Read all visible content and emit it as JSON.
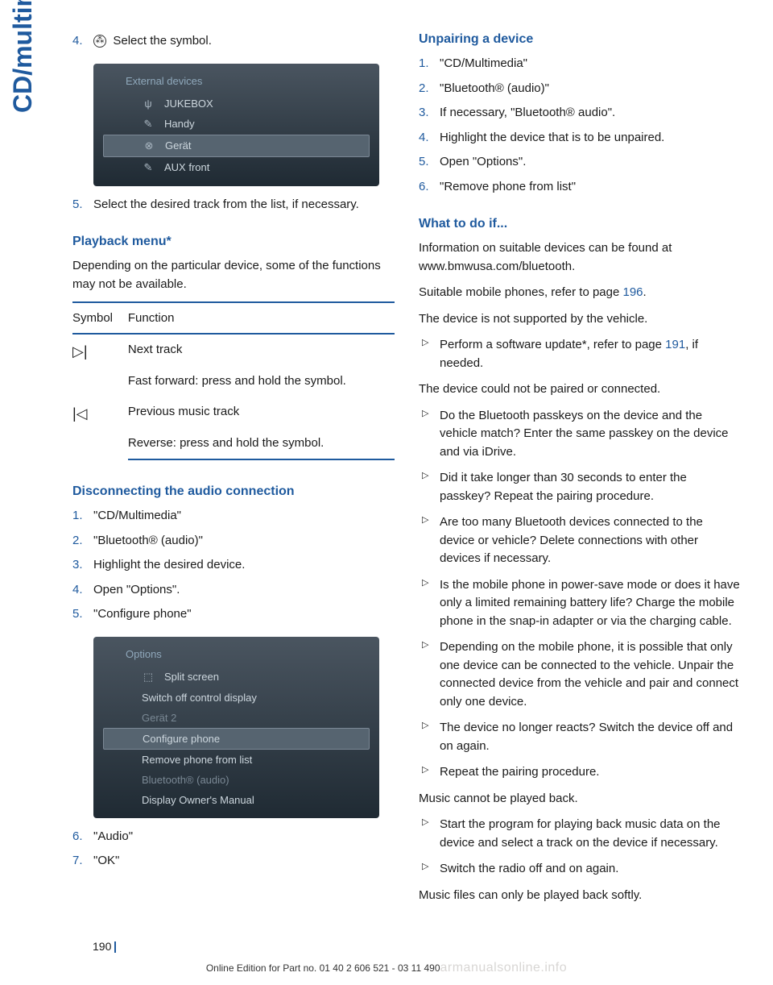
{
  "sidebar_label": "CD/multimedia",
  "col1": {
    "steps_top": [
      {
        "num": "4.",
        "prefix_icon": "⊗",
        "text": "Select the symbol."
      }
    ],
    "screenshot1": {
      "header": "External devices",
      "rows": [
        {
          "icon": "⎋",
          "label": "JUKEBOX",
          "selected": false,
          "check": false
        },
        {
          "icon": "✎",
          "label": "Handy",
          "selected": false,
          "check": true
        },
        {
          "icon": "⊗",
          "label": "Gerät",
          "selected": true,
          "check": false
        },
        {
          "icon": "✎",
          "label": "AUX front",
          "selected": false,
          "check": false
        }
      ]
    },
    "steps_mid": [
      {
        "num": "5.",
        "text": "Select the desired track from the list, if necessary."
      }
    ],
    "playback_heading": "Playback menu*",
    "playback_intro": "Depending on the particular device, some of the functions may not be available.",
    "table": {
      "headers": [
        "Symbol",
        "Function"
      ],
      "rows": [
        {
          "symbol": "▷|",
          "lines": [
            "Next track",
            "Fast forward: press and hold the symbol."
          ]
        },
        {
          "symbol": "|◁",
          "lines": [
            "Previous music track",
            "Reverse: press and hold the symbol."
          ]
        }
      ]
    },
    "disconnect_heading": "Disconnecting the audio connection",
    "disconnect_steps": [
      {
        "num": "1.",
        "text": "\"CD/Multimedia\""
      },
      {
        "num": "2.",
        "text": "\"Bluetooth® (audio)\""
      },
      {
        "num": "3.",
        "text": "Highlight the desired device."
      },
      {
        "num": "4.",
        "text": "Open \"Options\"."
      },
      {
        "num": "5.",
        "text": "\"Configure phone\""
      }
    ],
    "screenshot2": {
      "header": "Options",
      "rows": [
        {
          "icon": "⬚",
          "label": "Split screen",
          "selected": false
        },
        {
          "icon": "",
          "label": "Switch off control display",
          "selected": false
        },
        {
          "icon": "",
          "label": "Gerät 2",
          "selected": false,
          "dim": true
        },
        {
          "icon": "",
          "label": "Configure phone",
          "selected": true
        },
        {
          "icon": "",
          "label": "Remove phone from list",
          "selected": false
        },
        {
          "icon": "",
          "label": "Bluetooth® (audio)",
          "selected": false,
          "dim": true
        },
        {
          "icon": "",
          "label": "Display Owner's Manual",
          "selected": false
        }
      ]
    },
    "steps_bottom": [
      {
        "num": "6.",
        "text": "\"Audio\""
      },
      {
        "num": "7.",
        "text": "\"OK\""
      }
    ]
  },
  "col2": {
    "unpair_heading": "Unpairing a device",
    "unpair_steps": [
      {
        "num": "1.",
        "text": "\"CD/Multimedia\""
      },
      {
        "num": "2.",
        "text": "\"Bluetooth® (audio)\""
      },
      {
        "num": "3.",
        "text": "If necessary, \"Bluetooth® audio\"."
      },
      {
        "num": "4.",
        "text": "Highlight the device that is to be unpaired."
      },
      {
        "num": "5.",
        "text": "Open \"Options\"."
      },
      {
        "num": "6.",
        "text": "\"Remove phone from list\""
      }
    ],
    "whatif_heading": "What to do if...",
    "whatif_p1": "Information on suitable devices can be found at www.bmwusa.com/bluetooth.",
    "whatif_p2_pre": "Suitable mobile phones, refer to page ",
    "whatif_p2_link": "196",
    "whatif_p2_post": ".",
    "trouble1": "The device is not supported by the vehicle.",
    "trouble1_bullets": [
      {
        "pre": "Perform a software update*, refer to page ",
        "link": "191",
        "post": ", if needed."
      }
    ],
    "trouble2": "The device could not be paired or connected.",
    "trouble2_bullets": [
      "Do the Bluetooth passkeys on the device and the vehicle match? Enter the same passkey on the device and via iDrive.",
      "Did it take longer than 30 seconds to enter the passkey? Repeat the pairing procedure.",
      "Are too many Bluetooth devices connected to the device or vehicle? Delete connections with other devices if necessary.",
      "Is the mobile phone in power-save mode or does it have only a limited remaining battery life? Charge the mobile phone in the snap-in adapter or via the charging cable.",
      "Depending on the mobile phone, it is possible that only one device can be connected to the vehicle. Unpair the connected device from the vehicle and pair and connect only one device.",
      "The device no longer reacts? Switch the device off and on again.",
      "Repeat the pairing procedure."
    ],
    "trouble3": "Music cannot be played back.",
    "trouble3_bullets": [
      "Start the program for playing back music data on the device and select a track on the device if necessary.",
      "Switch the radio off and on again."
    ],
    "trouble4": "Music files can only be played back softly."
  },
  "page_number": "190",
  "footer": "Online Edition for Part no. 01 40 2 606 521 - 03 11 490",
  "watermark": "armanualsonline.info"
}
